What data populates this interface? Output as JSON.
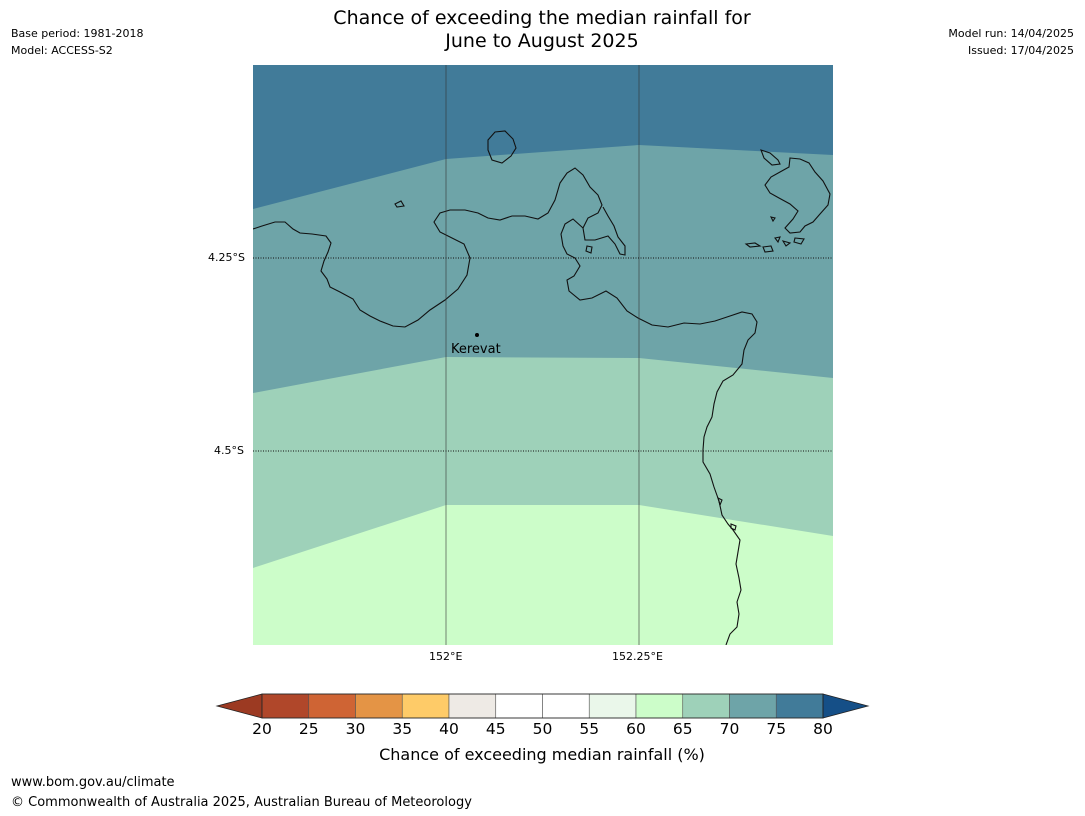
{
  "header": {
    "title_line1": "Chance of exceeding the median rainfall for",
    "title_line2": "June to August 2025",
    "base_period": "Base period: 1981-2018",
    "model": "Model: ACCESS-S2",
    "model_run": "Model run: 14/04/2025",
    "issued": "Issued: 17/04/2025"
  },
  "map": {
    "lat_labels": [
      "4.25°S",
      "4.5°S"
    ],
    "lon_labels": [
      "152°E",
      "152.25°E"
    ],
    "place": {
      "name": "Kerevat"
    }
  },
  "colorbar": {
    "title": "Chance of exceeding median rainfall (%)",
    "ticks": [
      "20",
      "25",
      "30",
      "35",
      "40",
      "45",
      "50",
      "55",
      "60",
      "65",
      "70",
      "75",
      "80"
    ],
    "under_color": "#9c3a22",
    "over_color": "#154f87",
    "bins": [
      {
        "from": 20,
        "to": 25,
        "color": "#b0472a"
      },
      {
        "from": 25,
        "to": 30,
        "color": "#cf6434"
      },
      {
        "from": 30,
        "to": 35,
        "color": "#e49445"
      },
      {
        "from": 35,
        "to": 40,
        "color": "#fecb68"
      },
      {
        "from": 40,
        "to": 45,
        "color": "#eeeae5"
      },
      {
        "from": 45,
        "to": 50,
        "color": "#ffffff"
      },
      {
        "from": 50,
        "to": 55,
        "color": "#ffffff"
      },
      {
        "from": 55,
        "to": 60,
        "color": "#eaf7ea"
      },
      {
        "from": 60,
        "to": 65,
        "color": "#ccfdc9"
      },
      {
        "from": 65,
        "to": 70,
        "color": "#9ed1b9"
      },
      {
        "from": 70,
        "to": 75,
        "color": "#6ea4a8"
      },
      {
        "from": 75,
        "to": 80,
        "color": "#417b99"
      }
    ]
  },
  "footer": {
    "url": "www.bom.gov.au/climate",
    "copyright": "© Commonwealth of Australia 2025, Australian Bureau of Meteorology"
  }
}
